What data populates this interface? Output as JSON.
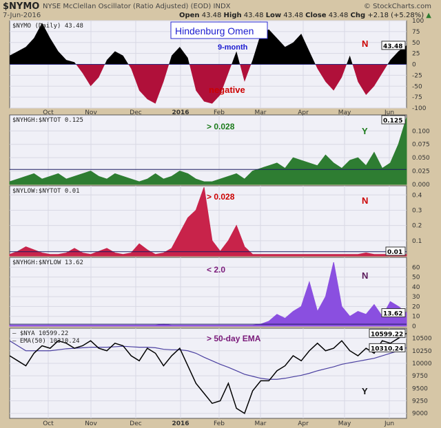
{
  "header": {
    "symbol": "$NYMO",
    "description": "NYSE McClellan Oscillator (Ratio Adjusted) (EOD)  INDX",
    "brand": "© StockCharts.com",
    "date": "7-Jun-2016",
    "open_label": "Open",
    "open": "43.48",
    "high_label": "High",
    "high": "43.48",
    "low_label": "Low",
    "low": "43.48",
    "close_label": "Close",
    "close": "43.48",
    "chg_label": "Chg",
    "chg": "+2.18 (+5.28%)"
  },
  "colors": {
    "background": "#d6c6a6",
    "plot": "#f0f0f7",
    "grid": "#d8d8e4",
    "nymo_pos": "#000000",
    "nymo_neg": "#b0103a",
    "high": "#2e7d32",
    "low": "#c8234a",
    "ratio": "#8a4fe0",
    "nya": "#000000",
    "ema": "#4a3fa0"
  },
  "chart_data": {
    "type": "area",
    "title": "Hindenburg Omen",
    "x_labels": [
      "Oct",
      "Nov",
      "Dec",
      "2016",
      "Feb",
      "Mar",
      "Apr",
      "May",
      "Jun"
    ],
    "panels": [
      {
        "legend": "$NYMO (Daily) 43.48",
        "last": "43.48",
        "ylim": [
          -100,
          100
        ],
        "ticks": [
          100,
          75,
          50,
          25,
          0,
          -25,
          -50,
          -75,
          -100
        ],
        "ref": 0,
        "annotations": [
          "9-month",
          "negative",
          "N"
        ],
        "values": [
          20,
          30,
          40,
          60,
          95,
          60,
          30,
          10,
          5,
          -20,
          -50,
          -30,
          10,
          30,
          20,
          -10,
          -60,
          -80,
          -90,
          -40,
          20,
          40,
          15,
          -60,
          -85,
          -90,
          -70,
          -20,
          30,
          -40,
          10,
          70,
          80,
          60,
          40,
          50,
          70,
          30,
          -10,
          -40,
          -60,
          -30,
          20,
          -40,
          -70,
          -50,
          -20,
          10,
          30,
          43.48
        ]
      },
      {
        "legend": "$NYHGH:$NYTOT 0.125",
        "last": "0.125",
        "ylim": [
          0,
          0.13
        ],
        "ticks": [
          0.1,
          0.075,
          0.05,
          0.025,
          0
        ],
        "tick_labels": [
          "0.100",
          "0.075",
          "0.050",
          "0.025",
          "0.000"
        ],
        "ref": 0.028,
        "annotations": [
          "> 0.028",
          "Y"
        ],
        "values": [
          0.005,
          0.01,
          0.015,
          0.02,
          0.01,
          0.015,
          0.02,
          0.01,
          0.015,
          0.02,
          0.025,
          0.015,
          0.01,
          0.02,
          0.015,
          0.01,
          0.005,
          0.01,
          0.02,
          0.01,
          0.015,
          0.025,
          0.02,
          0.01,
          0.005,
          0.005,
          0.01,
          0.015,
          0.02,
          0.01,
          0.025,
          0.03,
          0.035,
          0.04,
          0.03,
          0.05,
          0.045,
          0.04,
          0.035,
          0.055,
          0.04,
          0.03,
          0.045,
          0.05,
          0.035,
          0.06,
          0.03,
          0.04,
          0.075,
          0.125
        ]
      },
      {
        "legend": "$NYLOW:$NYTOT 0.01",
        "last": "0.01",
        "ylim": [
          0,
          0.46
        ],
        "ticks": [
          0.4,
          0.3,
          0.2,
          0.1
        ],
        "ref": 0.028,
        "annotations": [
          "> 0.028",
          "N"
        ],
        "values": [
          0.01,
          0.03,
          0.06,
          0.04,
          0.02,
          0.01,
          0.01,
          0.02,
          0.05,
          0.02,
          0.01,
          0.03,
          0.05,
          0.02,
          0.01,
          0.02,
          0.08,
          0.04,
          0.01,
          0.02,
          0.05,
          0.15,
          0.25,
          0.3,
          0.45,
          0.1,
          0.03,
          0.1,
          0.2,
          0.06,
          0.01,
          0.01,
          0.01,
          0.01,
          0.01,
          0.01,
          0.01,
          0.01,
          0.01,
          0.01,
          0.01,
          0.01,
          0.01,
          0.01,
          0.02,
          0.01,
          0.01,
          0.01,
          0.01,
          0.01
        ]
      },
      {
        "legend": "$NYHGH:$NYLOW 13.62",
        "last": "13.62",
        "ylim": [
          0,
          70
        ],
        "ticks": [
          60,
          50,
          40,
          30,
          20,
          10,
          0
        ],
        "ref": 2,
        "annotations": [
          "< 2.0",
          "N"
        ],
        "values": [
          1,
          1,
          1,
          1,
          1,
          1,
          1,
          1,
          1,
          1,
          1,
          1,
          1,
          1,
          1,
          1,
          1,
          1,
          1,
          2,
          1,
          1,
          1,
          1,
          1,
          1,
          1,
          1,
          1,
          1,
          1,
          2,
          5,
          12,
          8,
          15,
          20,
          45,
          15,
          30,
          65,
          20,
          10,
          15,
          12,
          22,
          10,
          25,
          20,
          13.62
        ]
      },
      {
        "legend_nya": "$NYA 10599.22",
        "legend_ema": "EMA(50) 10310.24",
        "last": "10599.22",
        "last_ema": "10310.24",
        "ylim": [
          8900,
          10700
        ],
        "ticks": [
          10500,
          10250,
          10000,
          9750,
          9500,
          9250,
          9000
        ],
        "annotations": [
          "> 50-day EMA",
          "Y"
        ],
        "values": [
          10150,
          10050,
          9950,
          10200,
          10350,
          10300,
          10450,
          10400,
          10300,
          10350,
          10450,
          10300,
          10250,
          10400,
          10350,
          10150,
          10050,
          10300,
          10200,
          9950,
          10150,
          10300,
          9950,
          9600,
          9400,
          9200,
          9250,
          9600,
          9100,
          9000,
          9450,
          9650,
          9650,
          9850,
          9950,
          10150,
          10050,
          10250,
          10400,
          10250,
          10300,
          10450,
          10250,
          10150,
          10300,
          10200,
          10450,
          10400,
          10500,
          10599.22
        ],
        "ema": [
          10450,
          10350,
          10250,
          10250,
          10250,
          10250,
          10270,
          10290,
          10300,
          10310,
          10320,
          10320,
          10320,
          10330,
          10340,
          10330,
          10320,
          10320,
          10310,
          10280,
          10270,
          10270,
          10250,
          10200,
          10120,
          10050,
          9980,
          9920,
          9850,
          9780,
          9740,
          9700,
          9680,
          9680,
          9700,
          9730,
          9760,
          9800,
          9850,
          9890,
          9930,
          9980,
          10010,
          10040,
          10070,
          10100,
          10150,
          10200,
          10250,
          10310.24
        ]
      }
    ]
  }
}
